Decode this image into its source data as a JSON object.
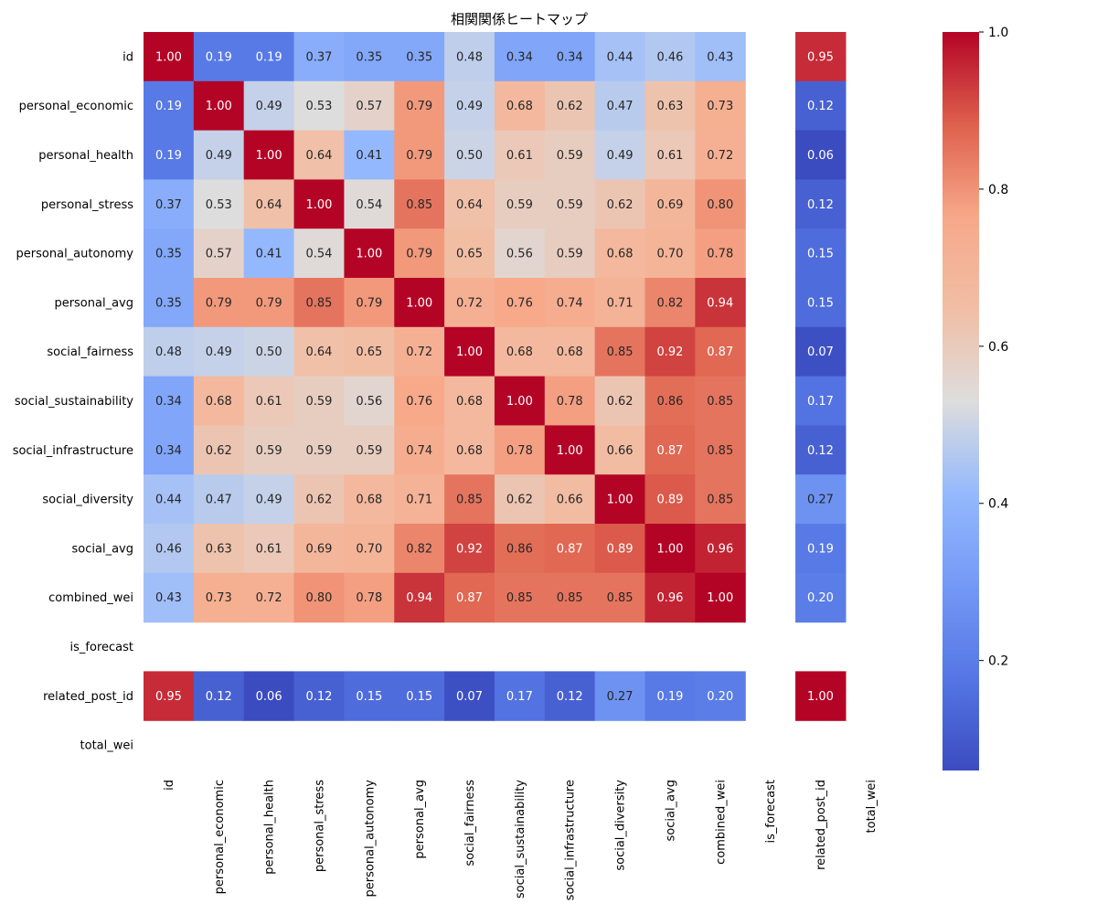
{
  "chart_data": {
    "type": "heatmap",
    "title": "相関関係ヒートマップ",
    "variables": [
      "id",
      "personal_economic",
      "personal_health",
      "personal_stress",
      "personal_autonomy",
      "personal_avg",
      "social_fairness",
      "social_sustainability",
      "social_infrastructure",
      "social_diversity",
      "social_avg",
      "combined_wei",
      "is_forecast",
      "related_post_id",
      "total_wei"
    ],
    "matrix": [
      [
        1.0,
        0.19,
        0.19,
        0.37,
        0.35,
        0.35,
        0.48,
        0.34,
        0.34,
        0.44,
        0.46,
        0.43,
        null,
        0.95,
        null
      ],
      [
        0.19,
        1.0,
        0.49,
        0.53,
        0.57,
        0.79,
        0.49,
        0.68,
        0.62,
        0.47,
        0.63,
        0.73,
        null,
        0.12,
        null
      ],
      [
        0.19,
        0.49,
        1.0,
        0.64,
        0.41,
        0.79,
        0.5,
        0.61,
        0.59,
        0.49,
        0.61,
        0.72,
        null,
        0.06,
        null
      ],
      [
        0.37,
        0.53,
        0.64,
        1.0,
        0.54,
        0.85,
        0.64,
        0.59,
        0.59,
        0.62,
        0.69,
        0.8,
        null,
        0.12,
        null
      ],
      [
        0.35,
        0.57,
        0.41,
        0.54,
        1.0,
        0.79,
        0.65,
        0.56,
        0.59,
        0.68,
        0.7,
        0.78,
        null,
        0.15,
        null
      ],
      [
        0.35,
        0.79,
        0.79,
        0.85,
        0.79,
        1.0,
        0.72,
        0.76,
        0.74,
        0.71,
        0.82,
        0.94,
        null,
        0.15,
        null
      ],
      [
        0.48,
        0.49,
        0.5,
        0.64,
        0.65,
        0.72,
        1.0,
        0.68,
        0.68,
        0.85,
        0.92,
        0.87,
        null,
        0.07,
        null
      ],
      [
        0.34,
        0.68,
        0.61,
        0.59,
        0.56,
        0.76,
        0.68,
        1.0,
        0.78,
        0.62,
        0.86,
        0.85,
        null,
        0.17,
        null
      ],
      [
        0.34,
        0.62,
        0.59,
        0.59,
        0.59,
        0.74,
        0.68,
        0.78,
        1.0,
        0.66,
        0.87,
        0.85,
        null,
        0.12,
        null
      ],
      [
        0.44,
        0.47,
        0.49,
        0.62,
        0.68,
        0.71,
        0.85,
        0.62,
        0.66,
        1.0,
        0.89,
        0.85,
        null,
        0.27,
        null
      ],
      [
        0.46,
        0.63,
        0.61,
        0.69,
        0.7,
        0.82,
        0.92,
        0.86,
        0.87,
        0.89,
        1.0,
        0.96,
        null,
        0.19,
        null
      ],
      [
        0.43,
        0.73,
        0.72,
        0.8,
        0.78,
        0.94,
        0.87,
        0.85,
        0.85,
        0.85,
        0.96,
        1.0,
        null,
        0.2,
        null
      ],
      [
        null,
        null,
        null,
        null,
        null,
        null,
        null,
        null,
        null,
        null,
        null,
        null,
        null,
        null,
        null
      ],
      [
        0.95,
        0.12,
        0.06,
        0.12,
        0.15,
        0.15,
        0.07,
        0.17,
        0.12,
        0.27,
        0.19,
        0.2,
        null,
        1.0,
        null
      ],
      [
        null,
        null,
        null,
        null,
        null,
        null,
        null,
        null,
        null,
        null,
        null,
        null,
        null,
        null,
        null
      ]
    ],
    "colormap": "coolwarm",
    "vmin": 0.06,
    "vmax": 1.0,
    "colorbar_ticks": [
      "0.2",
      "0.4",
      "0.6",
      "0.8",
      "1.0"
    ],
    "annotation_format": "2 decimals"
  }
}
